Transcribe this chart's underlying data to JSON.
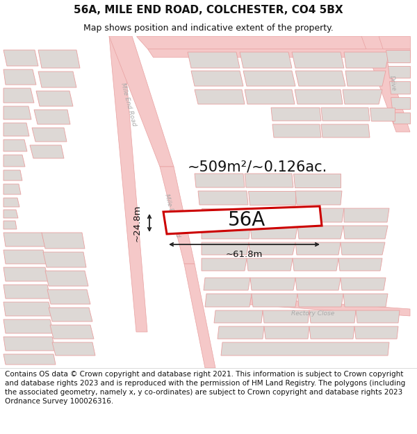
{
  "title": "56A, MILE END ROAD, COLCHESTER, CO4 5BX",
  "subtitle": "Map shows position and indicative extent of the property.",
  "footer_lines": [
    "Contains OS data © Crown copyright and database right 2021. This information is subject to Crown copyright and database rights 2023 and is reproduced with the permission of",
    "HM Land Registry. The polygons (including the associated geometry, namely x, y co-ordinates) are subject to Crown copyright and database rights 2023 Ordnance Survey",
    "100026316."
  ],
  "area_label": "~509m²/~0.126ac.",
  "width_label": "~61.8m",
  "height_label": "~24.8m",
  "plot_label": "56A",
  "bg_color": "#f5f0ee",
  "map_bg": "#f5f0ee",
  "road_color": "#f5c8c8",
  "road_edge": "#e8a0a0",
  "building_fill": "#ddd8d5",
  "building_edge": "#e8a0a0",
  "highlight_color": "#cc0000",
  "title_fontsize": 11,
  "subtitle_fontsize": 9,
  "footer_fontsize": 7.5,
  "area_fontsize": 15,
  "plot_fontsize": 20,
  "dim_fontsize": 9.5
}
